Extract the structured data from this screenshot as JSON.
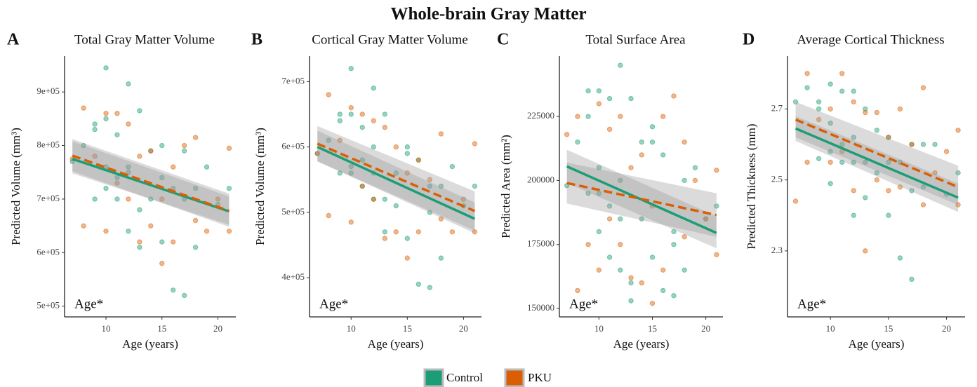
{
  "title": "Whole-brain Gray Matter",
  "chart_data": [
    {
      "type": "scatter",
      "panel": "A",
      "title": "Total Gray Matter Volume",
      "xlabel": "Age (years)",
      "ylabel": "Predicted Volume (mm³)",
      "annotation": "Age*",
      "xlim": [
        6.3,
        21.6
      ],
      "xticks": [
        10,
        15,
        20
      ],
      "ylim": [
        480000,
        967000
      ],
      "yticks": [
        {
          "value": 500000,
          "label": "5e+05"
        },
        {
          "value": 600000,
          "label": "6e+05"
        },
        {
          "value": 700000,
          "label": "7e+05"
        },
        {
          "value": 800000,
          "label": "8e+05"
        },
        {
          "value": 900000,
          "label": "9e+05"
        }
      ],
      "series": [
        {
          "name": "Control",
          "color": "#1b9e77",
          "dash": false,
          "x": [
            7,
            8,
            9,
            9,
            10,
            10,
            10,
            11,
            11,
            12,
            12,
            12,
            13,
            13,
            14,
            14,
            15,
            15,
            16,
            16,
            17,
            17,
            18,
            18,
            19,
            20,
            21,
            9,
            10,
            11,
            12,
            13,
            15,
            17
          ],
          "values": [
            770000,
            800000,
            840000,
            700000,
            945000,
            850000,
            760000,
            820000,
            740000,
            915000,
            760000,
            640000,
            865000,
            610000,
            790000,
            700000,
            800000,
            620000,
            530000,
            720000,
            790000,
            520000,
            720000,
            610000,
            760000,
            690000,
            720000,
            830000,
            720000,
            700000,
            750000,
            680000,
            740000,
            700000
          ],
          "fit": {
            "x": [
              7,
              21
            ],
            "values": [
              775000,
              677000
            ],
            "lower": [
              748000,
              652000
            ],
            "upper": [
              808000,
              705000
            ]
          }
        },
        {
          "name": "PKU",
          "color": "#d95f02",
          "dash": true,
          "x": [
            7,
            8,
            8,
            9,
            10,
            10,
            11,
            11,
            12,
            12,
            13,
            13,
            14,
            14,
            15,
            15,
            16,
            16,
            17,
            18,
            18,
            19,
            20,
            21,
            21
          ],
          "values": [
            775000,
            870000,
            650000,
            780000,
            860000,
            640000,
            860000,
            730000,
            840000,
            700000,
            780000,
            620000,
            790000,
            650000,
            580000,
            700000,
            760000,
            620000,
            800000,
            815000,
            660000,
            640000,
            700000,
            795000,
            640000
          ],
          "fit": {
            "x": [
              7,
              21
            ],
            "values": [
              781000,
              678000
            ],
            "lower": [
              752000,
              648000
            ],
            "upper": [
              812000,
              710000
            ]
          }
        }
      ]
    },
    {
      "type": "scatter",
      "panel": "B",
      "title": "Cortical Gray Matter Volume",
      "xlabel": "Age (years)",
      "ylabel": "Predicted Volume (mm³)",
      "annotation": "Age*",
      "xlim": [
        6.3,
        21.6
      ],
      "xticks": [
        10,
        15,
        20
      ],
      "ylim": [
        340000,
        739000
      ],
      "yticks": [
        {
          "value": 400000,
          "label": "4e+05"
        },
        {
          "value": 500000,
          "label": "5e+05"
        },
        {
          "value": 600000,
          "label": "6e+05"
        },
        {
          "value": 700000,
          "label": "7e+05"
        }
      ],
      "series": [
        {
          "name": "Control",
          "color": "#1b9e77",
          "dash": false,
          "x": [
            7,
            8,
            9,
            9,
            10,
            10,
            10,
            11,
            11,
            12,
            12,
            12,
            13,
            13,
            14,
            14,
            15,
            15,
            16,
            16,
            17,
            17,
            18,
            18,
            19,
            20,
            21,
            9,
            10,
            11,
            12,
            13,
            15,
            17
          ],
          "values": [
            590000,
            610000,
            650000,
            560000,
            720000,
            650000,
            560000,
            630000,
            580000,
            690000,
            600000,
            520000,
            650000,
            470000,
            560000,
            510000,
            600000,
            460000,
            390000,
            580000,
            540000,
            385000,
            540000,
            430000,
            570000,
            510000,
            540000,
            640000,
            570000,
            540000,
            560000,
            520000,
            590000,
            500000
          ],
          "fit": {
            "x": [
              7,
              21
            ],
            "values": [
              600000,
              490000
            ],
            "lower": [
              578000,
              468000
            ],
            "upper": [
              625000,
              515000
            ]
          }
        },
        {
          "name": "PKU",
          "color": "#d95f02",
          "dash": true,
          "x": [
            7,
            8,
            8,
            9,
            10,
            10,
            11,
            11,
            12,
            12,
            13,
            13,
            14,
            14,
            15,
            15,
            16,
            16,
            17,
            18,
            18,
            19,
            20,
            21,
            21
          ],
          "values": [
            590000,
            680000,
            495000,
            610000,
            660000,
            485000,
            650000,
            540000,
            640000,
            520000,
            630000,
            460000,
            600000,
            470000,
            430000,
            560000,
            580000,
            470000,
            550000,
            620000,
            490000,
            470000,
            520000,
            605000,
            470000
          ],
          "fit": {
            "x": [
              7,
              21
            ],
            "values": [
              605000,
              502000
            ],
            "lower": [
              578000,
              472000
            ],
            "upper": [
              632000,
              532000
            ]
          }
        }
      ]
    },
    {
      "type": "scatter",
      "panel": "C",
      "title": "Total Surface Area",
      "xlabel": "Age (years)",
      "ylabel": "Predicted Area (mm²)",
      "annotation": "Age*",
      "xlim": [
        6.3,
        21.6
      ],
      "xticks": [
        10,
        15,
        20
      ],
      "ylim": [
        146700,
        248600
      ],
      "yticks": [
        150000,
        175000,
        200000,
        225000
      ],
      "series": [
        {
          "name": "Control",
          "color": "#1b9e77",
          "dash": false,
          "x": [
            7,
            8,
            9,
            9,
            10,
            10,
            10,
            11,
            11,
            12,
            12,
            12,
            13,
            13,
            14,
            14,
            15,
            15,
            16,
            16,
            17,
            17,
            18,
            18,
            19,
            20,
            21,
            9,
            10,
            11,
            12,
            13,
            15,
            17
          ],
          "values": [
            198000,
            215000,
            235000,
            195000,
            235000,
            205000,
            180000,
            232000,
            190000,
            245000,
            200000,
            165000,
            232000,
            153000,
            215000,
            185000,
            221000,
            170000,
            157000,
            210000,
            180000,
            155000,
            200000,
            165000,
            205000,
            185000,
            190000,
            225000,
            195000,
            170000,
            185000,
            160000,
            215000,
            175000
          ],
          "fit": {
            "x": [
              7,
              21
            ],
            "values": [
              205500,
              179500
            ],
            "lower": [
              199000,
              173500
            ],
            "upper": [
              212000,
              186000
            ]
          }
        },
        {
          "name": "PKU",
          "color": "#d95f02",
          "dash": true,
          "x": [
            7,
            8,
            8,
            9,
            10,
            10,
            11,
            11,
            12,
            12,
            13,
            13,
            14,
            14,
            15,
            15,
            16,
            16,
            17,
            18,
            18,
            19,
            20,
            21,
            21
          ],
          "values": [
            218000,
            157000,
            225000,
            175000,
            230000,
            165000,
            220000,
            185000,
            225000,
            175000,
            205000,
            162000,
            210000,
            160000,
            152000,
            190000,
            225000,
            165000,
            233000,
            215000,
            178000,
            200000,
            185000,
            204000,
            171000
          ],
          "fit": {
            "x": [
              7,
              21
            ],
            "values": [
              199000,
              186500
            ],
            "lower": [
              191000,
              178000
            ],
            "upper": [
              207000,
              195000
            ]
          }
        }
      ]
    },
    {
      "type": "scatter",
      "panel": "D",
      "title": "Average Cortical Thickness",
      "xlabel": "Age (years)",
      "ylabel": "Predicted Thickness (mm)",
      "annotation": "Age*",
      "xlim": [
        6.3,
        21.6
      ],
      "xticks": [
        10,
        15,
        20
      ],
      "ylim": [
        2.114,
        2.849
      ],
      "yticks": [
        2.3,
        2.5,
        2.7
      ],
      "series": [
        {
          "name": "Control",
          "color": "#1b9e77",
          "dash": false,
          "x": [
            7,
            8,
            9,
            9,
            10,
            10,
            10,
            11,
            11,
            12,
            12,
            12,
            13,
            13,
            14,
            14,
            15,
            15,
            16,
            16,
            17,
            17,
            18,
            18,
            19,
            20,
            21,
            9,
            10,
            11,
            12,
            13,
            15,
            17
          ],
          "values": [
            2.72,
            2.76,
            2.72,
            2.56,
            2.77,
            2.66,
            2.49,
            2.75,
            2.55,
            2.75,
            2.55,
            2.4,
            2.7,
            2.45,
            2.64,
            2.52,
            2.62,
            2.4,
            2.28,
            2.55,
            2.6,
            2.22,
            2.6,
            2.48,
            2.6,
            2.46,
            2.52,
            2.7,
            2.58,
            2.6,
            2.62,
            2.55,
            2.55,
            2.47
          ],
          "fit": {
            "x": [
              7,
              21
            ],
            "values": [
              2.645,
              2.45
            ],
            "lower": [
              2.61,
              2.41
            ],
            "upper": [
              2.68,
              2.49
            ]
          }
        },
        {
          "name": "PKU",
          "color": "#d95f02",
          "dash": true,
          "x": [
            7,
            8,
            8,
            9,
            10,
            10,
            11,
            11,
            12,
            12,
            13,
            13,
            14,
            14,
            15,
            15,
            16,
            16,
            17,
            18,
            18,
            19,
            20,
            21,
            21
          ],
          "values": [
            2.44,
            2.8,
            2.55,
            2.67,
            2.7,
            2.55,
            2.8,
            2.58,
            2.72,
            2.47,
            2.69,
            2.3,
            2.69,
            2.5,
            2.47,
            2.62,
            2.7,
            2.48,
            2.6,
            2.76,
            2.43,
            2.52,
            2.58,
            2.64,
            2.43
          ],
          "fit": {
            "x": [
              7,
              21
            ],
            "values": [
              2.67,
              2.48
            ],
            "lower": [
              2.62,
              2.43
            ],
            "upper": [
              2.72,
              2.54
            ]
          }
        }
      ]
    }
  ]
}
